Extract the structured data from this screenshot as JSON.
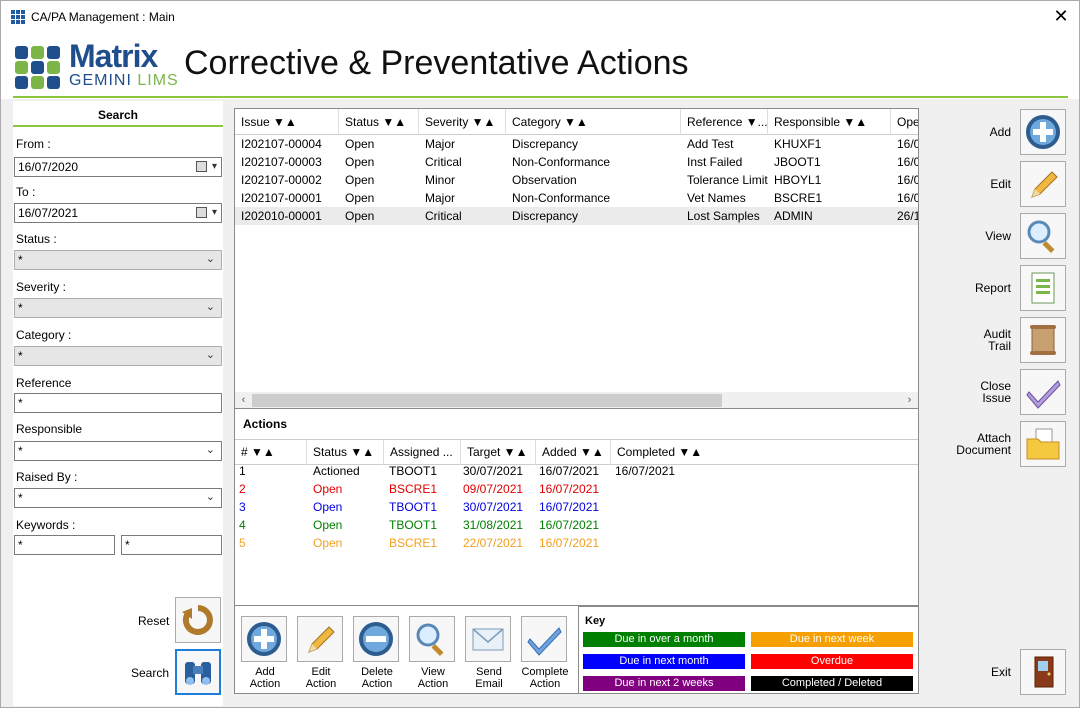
{
  "window": {
    "title": "CA/PA Management : Main"
  },
  "header": {
    "logo_main": "Matrix",
    "logo_sub_a": "GEMINI",
    "logo_sub_b": "LIMS",
    "page_title": "Corrective & Preventative Actions"
  },
  "search": {
    "title": "Search",
    "from_label": "From :",
    "from_value": "16/07/2020",
    "to_label": "To :",
    "to_value": "16/07/2021",
    "status_label": "Status :",
    "status_value": "*",
    "severity_label": "Severity :",
    "severity_value": "*",
    "category_label": "Category :",
    "category_value": "*",
    "reference_label": "Reference",
    "reference_value": "*",
    "responsible_label": "Responsible",
    "responsible_value": "*",
    "raisedby_label": "Raised By :",
    "raisedby_value": "*",
    "keywords_label": "Keywords :",
    "keyword1_value": "*",
    "keyword2_value": "*",
    "reset_label": "Reset",
    "search_label": "Search"
  },
  "issues": {
    "columns": [
      "Issue ▼▲",
      "Status ▼▲",
      "Severity ▼▲",
      "Category ▼▲",
      "Reference ▼...",
      "Responsible ▼▲",
      "Ope"
    ],
    "rows": [
      [
        "I202107-00004",
        "Open",
        "Major",
        "Discrepancy",
        "Add Test",
        "KHUXF1",
        "16/0"
      ],
      [
        "I202107-00003",
        "Open",
        "Critical",
        "Non-Conformance",
        "Inst Failed",
        "JBOOT1",
        "16/0"
      ],
      [
        "I202107-00002",
        "Open",
        "Minor",
        "Observation",
        "Tolerance Limit",
        "HBOYL1",
        "16/0"
      ],
      [
        "I202107-00001",
        "Open",
        "Major",
        "Non-Conformance",
        "Vet Names",
        "BSCRE1",
        "16/0"
      ],
      [
        "I202010-00001",
        "Open",
        "Critical",
        "Discrepancy",
        "Lost Samples",
        "ADMIN",
        "26/1"
      ]
    ]
  },
  "actions": {
    "title": "Actions",
    "columns": [
      "# ▼▲",
      "Status ▼▲",
      "Assigned ...",
      "Target ▼▲",
      "Added ▼▲",
      "Completed ▼▲"
    ],
    "rows": [
      {
        "cells": [
          "1",
          "Actioned",
          "TBOOT1",
          "30/07/2021",
          "16/07/2021",
          "16/07/2021"
        ],
        "color": "#000000"
      },
      {
        "cells": [
          "2",
          "Open",
          "BSCRE1",
          "09/07/2021",
          "16/07/2021",
          ""
        ],
        "color": "#e00000"
      },
      {
        "cells": [
          "3",
          "Open",
          "TBOOT1",
          "30/07/2021",
          "16/07/2021",
          ""
        ],
        "color": "#0000e0"
      },
      {
        "cells": [
          "4",
          "Open",
          "TBOOT1",
          "31/08/2021",
          "16/07/2021",
          ""
        ],
        "color": "#008000"
      },
      {
        "cells": [
          "5",
          "Open",
          "BSCRE1",
          "22/07/2021",
          "16/07/2021",
          ""
        ],
        "color": "#f0a020"
      }
    ],
    "buttons": [
      {
        "l1": "Add",
        "l2": "Action",
        "icon": "plus-circle-icon"
      },
      {
        "l1": "Edit",
        "l2": "Action",
        "icon": "pencil-icon"
      },
      {
        "l1": "Delete",
        "l2": "Action",
        "icon": "minus-circle-icon"
      },
      {
        "l1": "View",
        "l2": "Action",
        "icon": "magnifier-icon"
      },
      {
        "l1": "Send",
        "l2": "Email",
        "icon": "envelope-icon"
      },
      {
        "l1": "Complete",
        "l2": "Action",
        "icon": "checkmark-icon"
      }
    ]
  },
  "key": {
    "title": "Key",
    "items": [
      {
        "label": "Due in over a month",
        "color": "#008000"
      },
      {
        "label": "Due in next week",
        "color": "#f5a000"
      },
      {
        "label": "Due in next month",
        "color": "#0000ff"
      },
      {
        "label": "Overdue",
        "color": "#ff0000"
      },
      {
        "label": "Due in next 2 weeks",
        "color": "#800080"
      },
      {
        "label": "Completed / Deleted",
        "color": "#000000"
      }
    ]
  },
  "sidebar": {
    "add": "Add",
    "edit": "Edit",
    "view": "View",
    "report": "Report",
    "audit_a": "Audit",
    "audit_b": "Trail",
    "close_a": "Close",
    "close_b": "Issue",
    "attach_a": "Attach",
    "attach_b": "Document",
    "exit": "Exit"
  }
}
